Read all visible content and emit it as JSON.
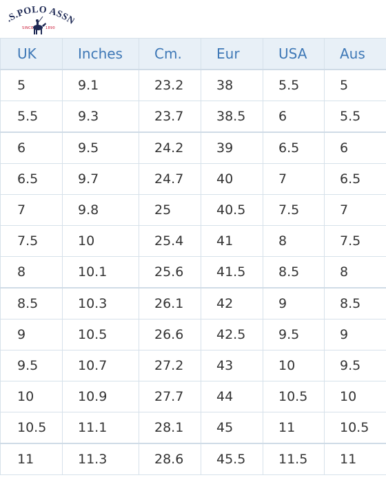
{
  "brand": {
    "name": "U.S.POLO ASSN.",
    "since_left": "SINCE",
    "since_year": "1890"
  },
  "table": {
    "headers": [
      "UK",
      "Inches",
      "Cm.",
      "Eur",
      "USA",
      "Aus"
    ],
    "rows": [
      [
        "5",
        "9.1",
        "23.2",
        "38",
        "5.5",
        "5"
      ],
      [
        "5.5",
        "9.3",
        "23.7",
        "38.5",
        "6",
        "5.5"
      ],
      [
        "6",
        "9.5",
        "24.2",
        "39",
        "6.5",
        "6"
      ],
      [
        "6.5",
        "9.7",
        "24.7",
        "40",
        "7",
        "6.5"
      ],
      [
        "7",
        "9.8",
        "25",
        "40.5",
        "7.5",
        "7"
      ],
      [
        "7.5",
        "10",
        "25.4",
        "41",
        "8",
        "7.5"
      ],
      [
        "8",
        "10.1",
        "25.6",
        "41.5",
        "8.5",
        "8"
      ],
      [
        "8.5",
        "10.3",
        "26.1",
        "42",
        "9",
        "8.5"
      ],
      [
        "9",
        "10.5",
        "26.6",
        "42.5",
        "9.5",
        "9"
      ],
      [
        "9.5",
        "10.7",
        "27.2",
        "43",
        "10",
        "9.5"
      ],
      [
        "10",
        "10.9",
        "27.7",
        "44",
        "10.5",
        "10"
      ],
      [
        "10.5",
        "11.1",
        "28.1",
        "45",
        "11",
        "10.5"
      ],
      [
        "11",
        "11.3",
        "28.6",
        "45.5",
        "11.5",
        "11"
      ]
    ]
  },
  "colors": {
    "header_text": "#3e78b6",
    "header_bg": "#e8f0f7",
    "border": "#d6e1ea",
    "logo_navy": "#1f2a55",
    "logo_red": "#c8102e"
  }
}
